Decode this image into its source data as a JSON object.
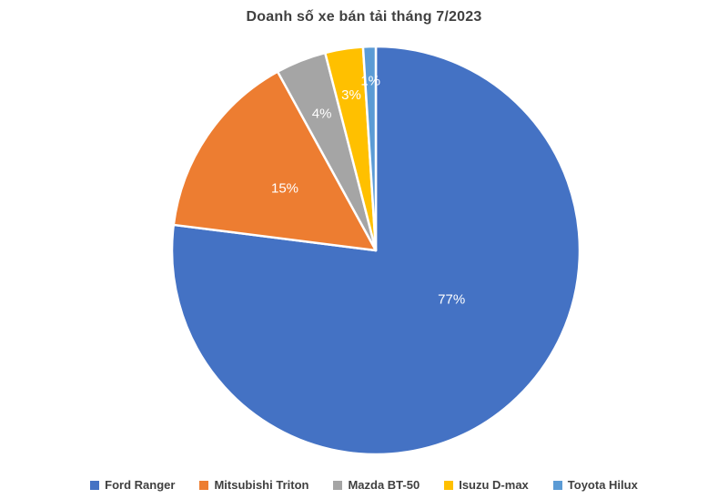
{
  "chart_data": {
    "type": "pie",
    "title": "Doanh số xe bán tải tháng 7/2023",
    "categories": [
      "Ford Ranger",
      "Mitsubishi Triton",
      "Mazda BT-50",
      "Isuzu D-max",
      "Toyota Hilux"
    ],
    "values": [
      77,
      15,
      4,
      3,
      1
    ],
    "data_labels": [
      "77%",
      "15%",
      "4%",
      "3%",
      "1%"
    ],
    "unit": "percent",
    "colors": [
      "#4472C4",
      "#ED7D31",
      "#A5A5A5",
      "#FFC000",
      "#5B9BD5"
    ],
    "slice_border_color": "#FFFFFF",
    "label_color": "#FFFFFF",
    "title_color": "#404040",
    "legend_text_color": "#404040",
    "legend_position": "bottom",
    "start_angle_deg": 0,
    "direction": "clockwise",
    "background": "#FFFFFF"
  }
}
